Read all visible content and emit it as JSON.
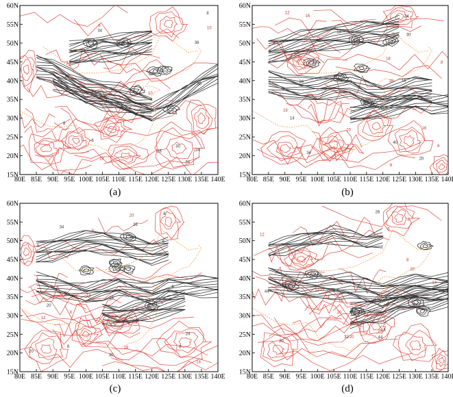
{
  "figure": {
    "panels": [
      {
        "id": "a",
        "caption": "(a)"
      },
      {
        "id": "b",
        "caption": "(b)"
      },
      {
        "id": "c",
        "caption": "(c)"
      },
      {
        "id": "d",
        "caption": "(d)"
      }
    ],
    "lon_labels": [
      "80E",
      "85E",
      "90E",
      "95E",
      "100E",
      "105E",
      "110E",
      "115E",
      "120E",
      "125E",
      "130E",
      "135E",
      "140E"
    ],
    "lat_labels": [
      "15N",
      "20N",
      "25N",
      "30N",
      "35N",
      "40N",
      "45N",
      "50N",
      "55N",
      "60N"
    ],
    "colors": {
      "frame": "#000000",
      "red_contour": "#e0463c",
      "black_contour": "#333333",
      "boundary": "#f0a050"
    },
    "contour_labels": {
      "red": [
        "6",
        "8",
        "10",
        "12",
        "14",
        "16",
        "18",
        "20"
      ],
      "black": [
        "6",
        "8",
        "10",
        "12",
        "14",
        "16",
        "18",
        "20",
        "22",
        "24",
        "26",
        "28",
        "30",
        "32",
        "34",
        "36",
        "38",
        "40",
        "44"
      ]
    }
  }
}
